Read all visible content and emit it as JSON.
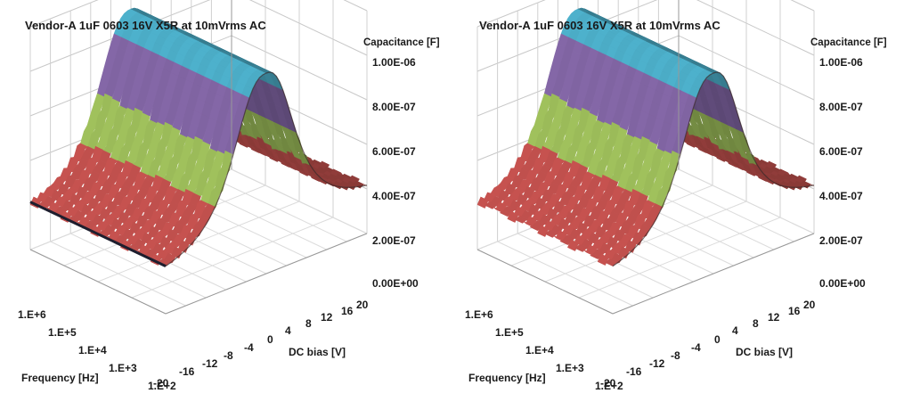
{
  "chart_data": [
    {
      "type": "surface",
      "title": "Vendor-A 1uF 0603 16V X5R at 10mVrms AC",
      "xlabel": "DC bias [V]",
      "ylabel": "Frequency [Hz]",
      "zlabel": "Capacitance [F]",
      "x_ticks": [
        "-20",
        "-16",
        "-12",
        "-8",
        "-4",
        "0",
        "4",
        "8",
        "12",
        "16",
        "20"
      ],
      "y_ticks": [
        "1.E+2",
        "1.E+3",
        "1.E+4",
        "1.E+5",
        "1.E+6"
      ],
      "z_ticks": [
        "0.00E+00",
        "2.00E-07",
        "4.00E-07",
        "6.00E-07",
        "8.00E-07",
        "1.00E-06"
      ],
      "zlim": [
        0,
        1e-06
      ],
      "color_bands": [
        {
          "range": "0.00E+00-2.00E-07",
          "color": "#4f81bd"
        },
        {
          "range": "2.00E-07-4.00E-07",
          "color": "#c0504d"
        },
        {
          "range": "4.00E-07-6.00E-07",
          "color": "#9bbb59"
        },
        {
          "range": "6.00E-07-8.00E-07",
          "color": "#8064a2"
        },
        {
          "range": "8.00E-07-1.00E-06",
          "color": "#4bacc6"
        }
      ],
      "approx_peak": {
        "dc_bias": 0,
        "capacitance": 9e-07
      },
      "approx_edge": {
        "dc_bias": 20,
        "capacitance": 1.8e-07
      },
      "approx_edge_neg": {
        "dc_bias": -20,
        "capacitance": 1.6e-07
      }
    },
    {
      "type": "surface",
      "title": "Vendor-A 1uF 0603 16V X5R at 10mVrms AC",
      "xlabel": "DC bias [V]",
      "ylabel": "Frequency [Hz]",
      "zlabel": "Capacitance [F]",
      "x_ticks": [
        "-20",
        "-16",
        "-12",
        "-8",
        "-4",
        "0",
        "4",
        "8",
        "12",
        "16",
        "20"
      ],
      "y_ticks": [
        "1.E+2",
        "1.E+3",
        "1.E+4",
        "1.E+5",
        "1.E+6"
      ],
      "z_ticks": [
        "0.00E+00",
        "2.00E-07",
        "4.00E-07",
        "6.00E-07",
        "8.00E-07",
        "1.00E-06"
      ],
      "zlim": [
        0,
        1e-06
      ],
      "color_bands": [
        {
          "range": "0.00E+00-2.00E-07",
          "color": "#4f81bd"
        },
        {
          "range": "2.00E-07-4.00E-07",
          "color": "#c0504d"
        },
        {
          "range": "4.00E-07-6.00E-07",
          "color": "#9bbb59"
        },
        {
          "range": "6.00E-07-8.00E-07",
          "color": "#8064a2"
        },
        {
          "range": "8.00E-07-1.00E-06",
          "color": "#4bacc6"
        }
      ],
      "approx_peak": {
        "dc_bias": 0,
        "capacitance": 9e-07
      },
      "approx_edge": {
        "dc_bias": 20,
        "capacitance": 1.8e-07
      },
      "approx_edge_neg": {
        "dc_bias": -20,
        "capacitance": 1.6e-07
      }
    }
  ]
}
